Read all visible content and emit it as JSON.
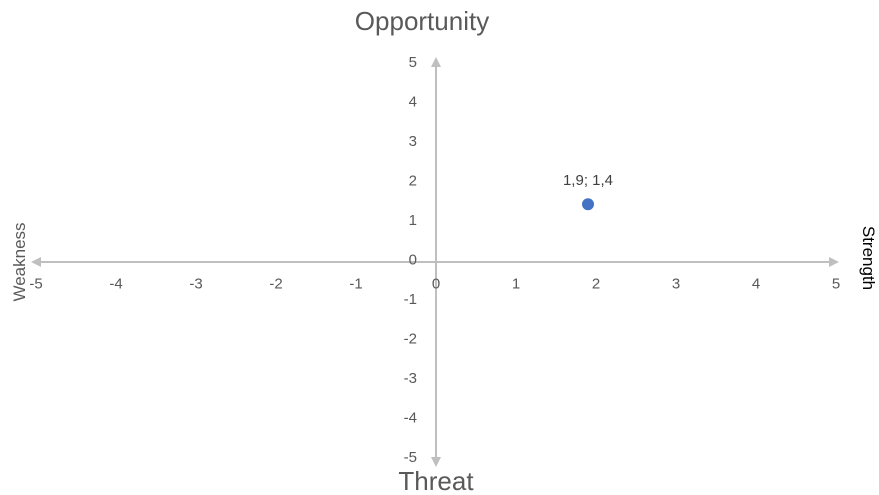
{
  "chart_data": {
    "type": "scatter",
    "titles": {
      "top": "Opportunity",
      "bottom": "Threat",
      "left": "Weakness",
      "right": "Strength"
    },
    "xlim": [
      -5,
      5
    ],
    "ylim": [
      -5,
      5
    ],
    "x_ticks": [
      "-5",
      "-4",
      "-3",
      "-2",
      "-1",
      "0",
      "1",
      "2",
      "3",
      "4",
      "5"
    ],
    "y_ticks": [
      "5",
      "4",
      "3",
      "2",
      "1",
      "0",
      "-1",
      "-2",
      "-3",
      "-4",
      "-5"
    ],
    "grid": false,
    "points": [
      {
        "x": 1.9,
        "y": 1.4,
        "label": "1,9; 1,4"
      }
    ],
    "colors": {
      "axis": "#bfbfbf",
      "point": "#4472c4",
      "text": "#595959"
    }
  }
}
